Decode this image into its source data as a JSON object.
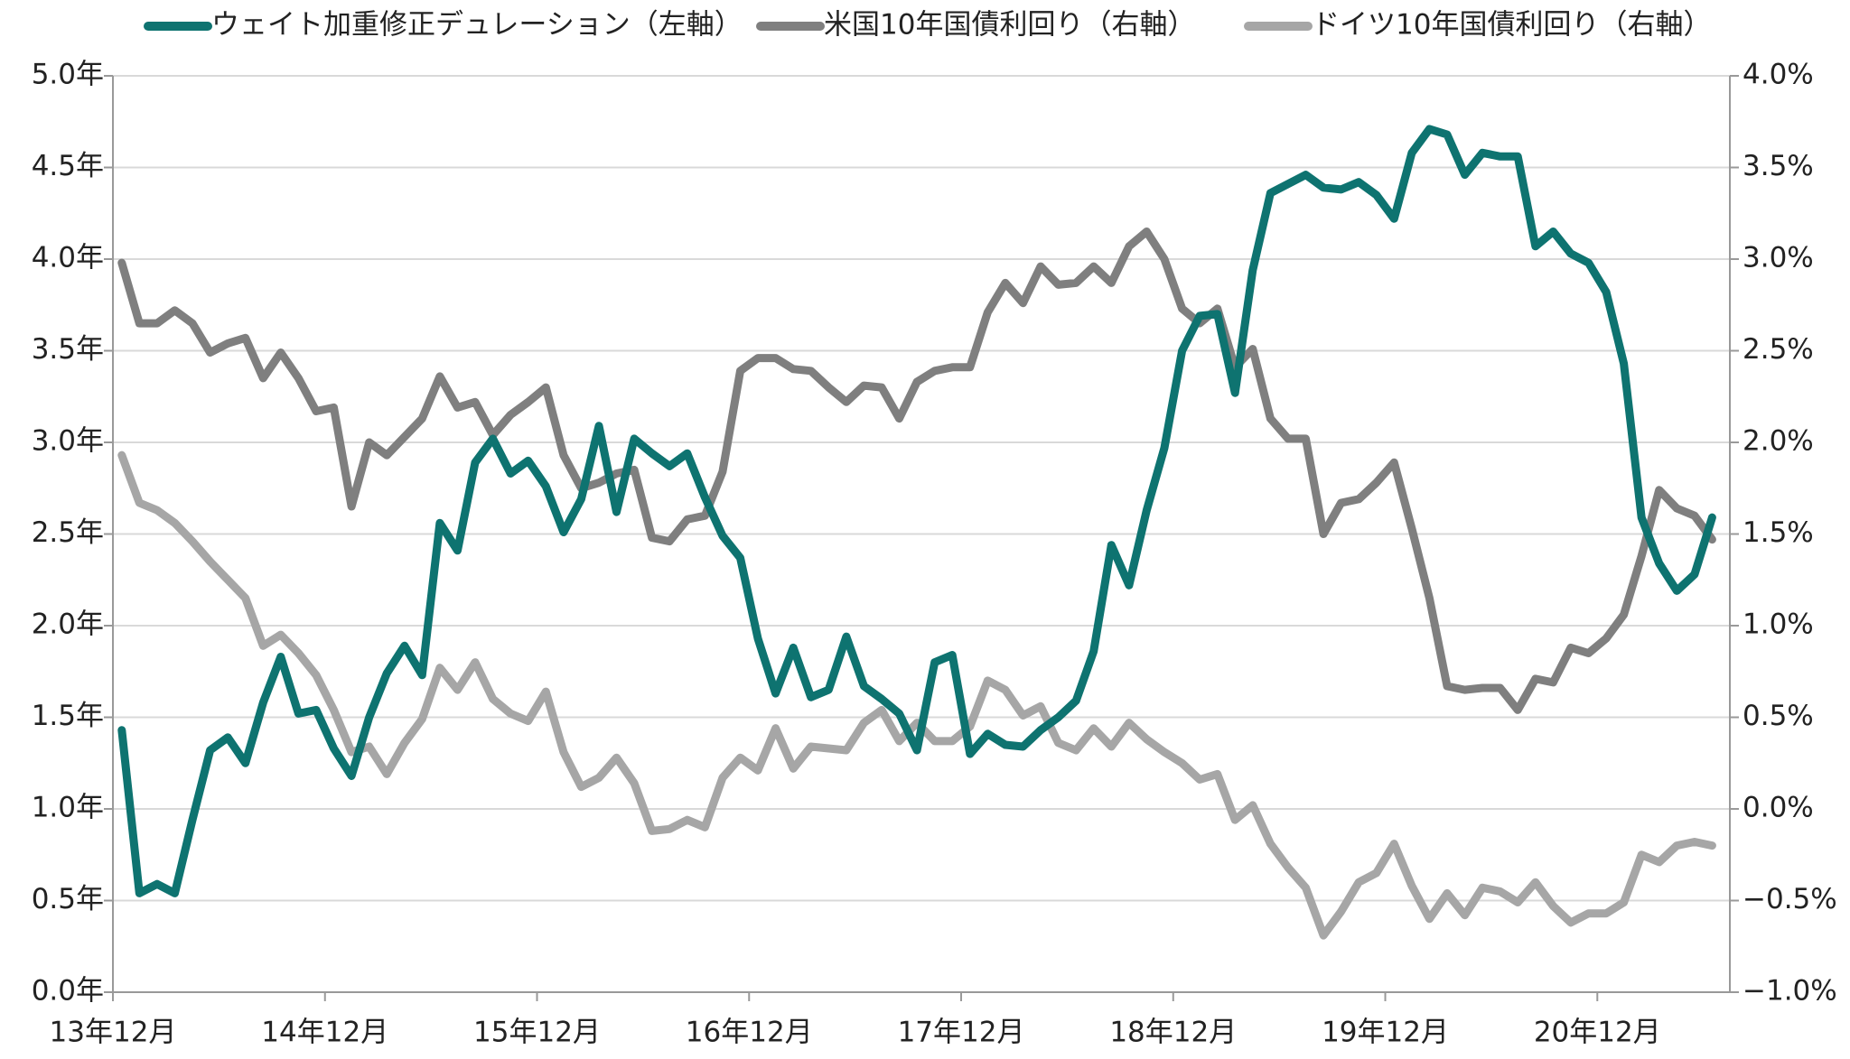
{
  "chart_data": {
    "type": "line",
    "categories": [
      "13年12月",
      null,
      null,
      null,
      null,
      null,
      null,
      null,
      null,
      null,
      null,
      null,
      "14年12月",
      null,
      null,
      null,
      null,
      null,
      null,
      null,
      null,
      null,
      null,
      null,
      "15年12月",
      null,
      null,
      null,
      null,
      null,
      null,
      null,
      null,
      null,
      null,
      null,
      "16年12月",
      null,
      null,
      null,
      null,
      null,
      null,
      null,
      null,
      null,
      null,
      null,
      "17年12月",
      null,
      null,
      null,
      null,
      null,
      null,
      null,
      null,
      null,
      null,
      null,
      "18年12月",
      null,
      null,
      null,
      null,
      null,
      null,
      null,
      null,
      null,
      null,
      null,
      "19年12月",
      null,
      null,
      null,
      null,
      null,
      null,
      null,
      null,
      null,
      null,
      null,
      "20年12月",
      null,
      null,
      null,
      null,
      null,
      null
    ],
    "series": [
      {
        "name": "ウェイト加重修正デュレーション（左軸）",
        "color": "#0e7370",
        "axis": "y",
        "values": [
          1.43,
          0.54,
          0.59,
          0.54,
          0.94,
          1.32,
          1.39,
          1.25,
          1.58,
          1.83,
          1.52,
          1.54,
          1.33,
          1.18,
          1.5,
          1.74,
          1.89,
          1.73,
          2.56,
          2.41,
          2.89,
          3.02,
          2.83,
          2.9,
          2.76,
          2.51,
          2.69,
          3.09,
          2.62,
          3.02,
          2.94,
          2.87,
          2.94,
          2.7,
          2.49,
          2.37,
          1.93,
          1.63,
          1.88,
          1.61,
          1.65,
          1.94,
          1.67,
          1.6,
          1.52,
          1.32,
          1.8,
          1.84,
          1.3,
          1.41,
          1.35,
          1.34,
          1.43,
          1.5,
          1.59,
          1.86,
          2.44,
          2.22,
          2.63,
          2.97,
          3.5,
          3.69,
          3.7,
          3.27,
          3.94,
          4.36,
          4.41,
          4.46,
          4.39,
          4.38,
          4.42,
          4.35,
          4.22,
          4.58,
          4.71,
          4.68,
          4.46,
          4.58,
          4.56,
          4.56,
          4.07,
          4.15,
          4.03,
          3.98,
          3.82,
          3.43,
          2.59,
          2.34,
          2.19,
          2.28,
          2.59
        ]
      },
      {
        "name": "米国10年国債利回り（右軸）",
        "color": "#7f7f7f",
        "axis": "y2",
        "values": [
          2.98,
          2.65,
          2.65,
          2.72,
          2.65,
          2.49,
          2.54,
          2.57,
          2.35,
          2.49,
          2.35,
          2.17,
          2.19,
          1.65,
          2.0,
          1.93,
          2.03,
          2.13,
          2.36,
          2.19,
          2.22,
          2.04,
          2.15,
          2.22,
          2.3,
          1.93,
          1.75,
          1.78,
          1.83,
          1.85,
          1.48,
          1.46,
          1.58,
          1.6,
          1.84,
          2.39,
          2.46,
          2.46,
          2.4,
          2.39,
          2.3,
          2.22,
          2.31,
          2.3,
          2.13,
          2.33,
          2.39,
          2.41,
          2.41,
          2.71,
          2.87,
          2.76,
          2.96,
          2.86,
          2.87,
          2.96,
          2.87,
          3.07,
          3.15,
          3.0,
          2.73,
          2.65,
          2.73,
          2.41,
          2.51,
          2.13,
          2.02,
          2.02,
          1.5,
          1.67,
          1.69,
          1.78,
          1.89,
          1.53,
          1.15,
          0.67,
          0.65,
          0.66,
          0.66,
          0.54,
          0.71,
          0.69,
          0.88,
          0.85,
          0.93,
          1.06,
          1.38,
          1.74,
          1.64,
          1.6,
          1.47
        ]
      },
      {
        "name": "ドイツ10年国債利回り（右軸）",
        "color": "#a6a6a6",
        "axis": "y2",
        "values": [
          1.93,
          1.67,
          1.63,
          1.56,
          1.46,
          1.35,
          1.25,
          1.15,
          0.89,
          0.95,
          0.85,
          0.73,
          0.54,
          0.31,
          0.34,
          0.19,
          0.36,
          0.49,
          0.77,
          0.65,
          0.8,
          0.6,
          0.52,
          0.48,
          0.64,
          0.31,
          0.12,
          0.17,
          0.28,
          0.14,
          -0.12,
          -0.11,
          -0.06,
          -0.1,
          0.17,
          0.28,
          0.21,
          0.44,
          0.22,
          0.34,
          0.33,
          0.32,
          0.47,
          0.54,
          0.37,
          0.47,
          0.37,
          0.37,
          0.45,
          0.7,
          0.65,
          0.51,
          0.56,
          0.36,
          0.32,
          0.44,
          0.34,
          0.47,
          0.38,
          0.31,
          0.25,
          0.16,
          0.19,
          -0.06,
          0.02,
          -0.19,
          -0.32,
          -0.43,
          -0.69,
          -0.56,
          -0.4,
          -0.35,
          -0.19,
          -0.42,
          -0.6,
          -0.46,
          -0.58,
          -0.43,
          -0.45,
          -0.51,
          -0.4,
          -0.53,
          -0.62,
          -0.57,
          -0.57,
          -0.51,
          -0.25,
          -0.29,
          -0.2,
          -0.18,
          -0.2
        ]
      }
    ],
    "ylim": [
      0,
      5
    ],
    "yticks": [
      {
        "value": 0,
        "label": "0.0年"
      },
      {
        "value": 0.5,
        "label": "0.5年"
      },
      {
        "value": 1,
        "label": "1.0年"
      },
      {
        "value": 1.5,
        "label": "1.5年"
      },
      {
        "value": 2,
        "label": "2.0年"
      },
      {
        "value": 2.5,
        "label": "2.5年"
      },
      {
        "value": 3,
        "label": "3.0年"
      },
      {
        "value": 3.5,
        "label": "3.5年"
      },
      {
        "value": 4,
        "label": "4.0年"
      },
      {
        "value": 4.5,
        "label": "4.5年"
      },
      {
        "value": 5,
        "label": "5.0年"
      }
    ],
    "y2lim": [
      -1,
      4
    ],
    "y2ticks": [
      {
        "value": -1,
        "label": "−1.0%"
      },
      {
        "value": -0.5,
        "label": "−0.5%"
      },
      {
        "value": 0,
        "label": "0.0%"
      },
      {
        "value": 0.5,
        "label": "0.5%"
      },
      {
        "value": 1,
        "label": "1.0%"
      },
      {
        "value": 1.5,
        "label": "1.5%"
      },
      {
        "value": 2,
        "label": "2.0%"
      },
      {
        "value": 2.5,
        "label": "2.5%"
      },
      {
        "value": 3,
        "label": "3.0%"
      },
      {
        "value": 3.5,
        "label": "3.5%"
      },
      {
        "value": 4,
        "label": "4.0%"
      }
    ],
    "grid": true,
    "legend": "top"
  }
}
